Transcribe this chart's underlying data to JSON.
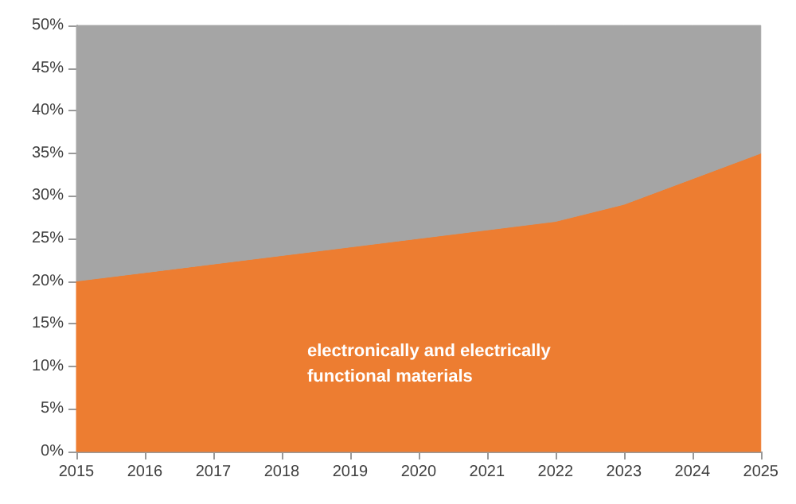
{
  "chart_data": {
    "type": "area",
    "stacked": true,
    "x": [
      2015,
      2016,
      2017,
      2018,
      2019,
      2020,
      2021,
      2022,
      2023,
      2024,
      2025
    ],
    "series": [
      {
        "name": "electronically and electrically functional materials",
        "color": "#ed7d31",
        "values": [
          20,
          21,
          22,
          23,
          24,
          25,
          26,
          27,
          29,
          32,
          35
        ]
      },
      {
        "color": "#a5a5a5",
        "values": [
          30,
          29,
          28,
          27,
          26,
          25,
          24,
          23,
          21,
          18,
          15
        ]
      }
    ],
    "xlim": [
      2015,
      2025
    ],
    "xticks": [
      2015,
      2016,
      2017,
      2018,
      2019,
      2020,
      2021,
      2022,
      2023,
      2024,
      2025
    ],
    "ylim": [
      0,
      50
    ],
    "yticks": [
      {
        "value": 0,
        "label": "0%"
      },
      {
        "value": 5,
        "label": "5%"
      },
      {
        "value": 10,
        "label": "10%"
      },
      {
        "value": 15,
        "label": "15%"
      },
      {
        "value": 20,
        "label": "20%"
      },
      {
        "value": 25,
        "label": "25%"
      },
      {
        "value": 30,
        "label": "30%"
      },
      {
        "value": 35,
        "label": "35%"
      },
      {
        "value": 40,
        "label": "40%"
      },
      {
        "value": 45,
        "label": "45%"
      },
      {
        "value": 50,
        "label": "50%"
      }
    ],
    "grid": false,
    "legend": false
  }
}
